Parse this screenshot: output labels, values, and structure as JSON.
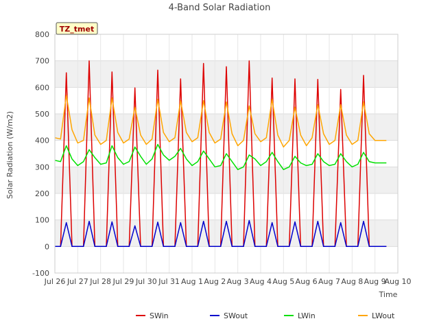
{
  "chart_data": {
    "type": "line",
    "title": "4-Band Solar Radiation",
    "xlabel": "Time",
    "ylabel": "Solar Radiation (W/m2)",
    "site_label": "TZ_tmet",
    "xlim": [
      0,
      15
    ],
    "ylim": [
      -100,
      800
    ],
    "yticks": [
      -100,
      0,
      100,
      200,
      300,
      400,
      500,
      600,
      700,
      800
    ],
    "xtick_labels": [
      "Jul 26",
      "Jul 27",
      "Jul 28",
      "Jul 29",
      "Jul 30",
      "Jul 31",
      "Aug 1",
      "Aug 2",
      "Aug 3",
      "Aug 4",
      "Aug 5",
      "Aug 6",
      "Aug 7",
      "Aug 8",
      "Aug 9",
      "Aug 10"
    ],
    "grid": true,
    "legend_position": "bottom",
    "x": [
      0,
      0.25,
      0.5,
      0.75,
      1,
      1.25,
      1.5,
      1.75,
      2,
      2.25,
      2.5,
      2.75,
      3,
      3.25,
      3.5,
      3.75,
      4,
      4.25,
      4.5,
      4.75,
      5,
      5.25,
      5.5,
      5.75,
      6,
      6.25,
      6.5,
      6.75,
      7,
      7.25,
      7.5,
      7.75,
      8,
      8.25,
      8.5,
      8.75,
      9,
      9.25,
      9.5,
      9.75,
      10,
      10.25,
      10.5,
      10.75,
      11,
      11.25,
      11.5,
      11.75,
      12,
      12.25,
      12.5,
      12.75,
      13,
      13.25,
      13.5,
      13.75,
      14,
      14.25,
      14.5
    ],
    "series": [
      {
        "name": "SWin",
        "color": "#dd0000",
        "values": [
          0,
          0,
          655,
          0,
          0,
          0,
          700,
          0,
          0,
          0,
          658,
          0,
          0,
          0,
          598,
          0,
          0,
          0,
          665,
          0,
          0,
          0,
          632,
          0,
          0,
          0,
          690,
          0,
          0,
          0,
          678,
          0,
          0,
          0,
          700,
          0,
          0,
          0,
          635,
          0,
          0,
          0,
          632,
          0,
          0,
          0,
          630,
          0,
          0,
          0,
          592,
          0,
          0,
          0,
          645,
          0,
          0,
          0,
          0
        ]
      },
      {
        "name": "SWout",
        "color": "#0000cc",
        "values": [
          0,
          0,
          90,
          0,
          0,
          0,
          95,
          0,
          0,
          0,
          93,
          0,
          0,
          0,
          78,
          0,
          0,
          0,
          92,
          0,
          0,
          0,
          90,
          0,
          0,
          0,
          95,
          0,
          0,
          0,
          95,
          0,
          0,
          0,
          98,
          0,
          0,
          0,
          90,
          0,
          0,
          0,
          93,
          0,
          0,
          0,
          95,
          0,
          0,
          0,
          90,
          0,
          0,
          0,
          95,
          0,
          0,
          0,
          0
        ]
      },
      {
        "name": "LWin",
        "color": "#00e000",
        "values": [
          325,
          320,
          380,
          330,
          305,
          320,
          365,
          335,
          310,
          315,
          380,
          335,
          310,
          320,
          375,
          340,
          310,
          330,
          385,
          345,
          325,
          340,
          370,
          330,
          305,
          320,
          360,
          330,
          300,
          305,
          350,
          320,
          290,
          300,
          345,
          330,
          305,
          320,
          355,
          320,
          290,
          300,
          340,
          315,
          305,
          310,
          350,
          320,
          305,
          310,
          350,
          320,
          300,
          310,
          355,
          320,
          315,
          315,
          315
        ]
      },
      {
        "name": "LWout",
        "color": "#ffa500",
        "values": [
          410,
          405,
          570,
          440,
          390,
          400,
          560,
          420,
          385,
          400,
          560,
          430,
          390,
          405,
          525,
          420,
          385,
          405,
          555,
          430,
          395,
          410,
          550,
          430,
          395,
          410,
          550,
          430,
          390,
          405,
          545,
          425,
          380,
          400,
          530,
          425,
          395,
          410,
          555,
          420,
          375,
          400,
          525,
          420,
          380,
          410,
          535,
          425,
          385,
          400,
          535,
          420,
          385,
          400,
          545,
          425,
          400,
          400,
          400
        ]
      }
    ]
  }
}
